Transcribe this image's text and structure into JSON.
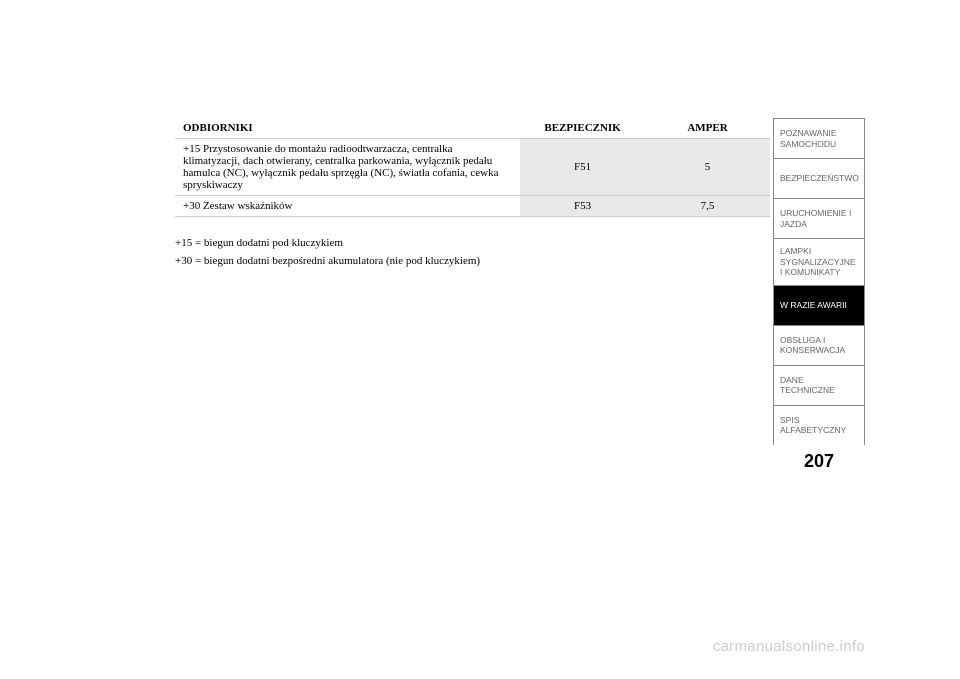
{
  "table": {
    "headers": {
      "receivers": "ODBIORNIKI",
      "fuse": "BEZPIECZNIK",
      "amper": "AMPER"
    },
    "rows": [
      {
        "receivers": "+15 Przystosowanie do montażu radioodtwarzacza, centralka klimatyzacji, dach otwierany, centralka parkowania, wyłącznik pedału hamulca (NC), wyłącznik pedału sprzęgła (NC), światła cofania, cewka spryskiwaczy",
        "fuse": "F51",
        "amper": "5"
      },
      {
        "receivers": "+30 Zestaw wskaźników",
        "fuse": "F53",
        "amper": "7,5"
      }
    ]
  },
  "notes": {
    "line1": "+15 = biegun dodatni pod kluczykiem",
    "line2": "+30 = biegun dodatni bezpośredni akumulatora (nie pod kluczykiem)"
  },
  "sidebar": {
    "tabs": [
      {
        "label": "POZNAWANIE SAMOCHODU",
        "active": false
      },
      {
        "label": "BEZPIECZEŃSTWO",
        "active": false
      },
      {
        "label": "URUCHOMIENIE I JAZDA",
        "active": false
      },
      {
        "label": "LAMPKI SYGNALIZACYJNE I KOMUNIKATY",
        "active": false
      },
      {
        "label": "W RAZIE AWARII",
        "active": true
      },
      {
        "label": "OBSŁUGA I KONSERWACJA",
        "active": false
      },
      {
        "label": "DANE TECHNICZNE",
        "active": false
      },
      {
        "label": "SPIS ALFABETYCZNY",
        "active": false
      }
    ],
    "page_number": "207"
  },
  "watermark": "carmanualsonline.info",
  "colors": {
    "shaded_cell_bg": "#e8e8e8",
    "tab_border": "#888888",
    "tab_text": "#666666",
    "active_tab_bg": "#000000",
    "active_tab_text": "#ffffff",
    "watermark_color": "#cccccc"
  },
  "typography": {
    "table_fontsize": 11,
    "notes_fontsize": 11,
    "tab_fontsize": 8.5,
    "page_number_fontsize": 18,
    "watermark_fontsize": 15
  }
}
